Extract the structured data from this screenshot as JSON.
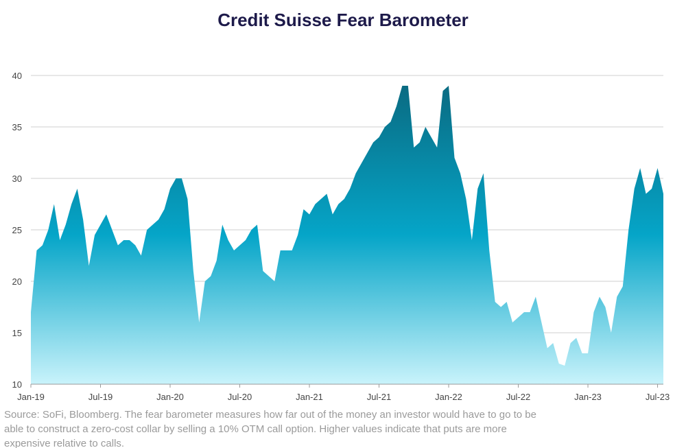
{
  "chart_data": {
    "type": "area",
    "title": "Credit Suisse Fear Barometer",
    "source": "Source: SoFi, Bloomberg. The fear barometer measures how far out of the money an investor would have to go to be able to construct a zero-cost collar by selling a 10% OTM call option. Higher values indicate that puts are more expensive relative to calls.",
    "categories": [
      "Jan-19",
      null,
      null,
      null,
      null,
      null,
      null,
      null,
      null,
      null,
      null,
      null,
      "Jul-19",
      null,
      null,
      null,
      null,
      null,
      null,
      null,
      null,
      null,
      null,
      null,
      "Jan-20",
      null,
      null,
      null,
      null,
      null,
      null,
      null,
      null,
      null,
      null,
      null,
      "Jul-20",
      null,
      null,
      null,
      null,
      null,
      null,
      null,
      null,
      null,
      null,
      null,
      "Jan-21",
      null,
      null,
      null,
      null,
      null,
      null,
      null,
      null,
      null,
      null,
      null,
      "Jul-21",
      null,
      null,
      null,
      null,
      null,
      null,
      null,
      null,
      null,
      null,
      null,
      "Jan-22",
      null,
      null,
      null,
      null,
      null,
      null,
      null,
      null,
      null,
      null,
      null,
      "Jul-22",
      null,
      null,
      null,
      null,
      null,
      null,
      null,
      null,
      null,
      null,
      null,
      "Jan-23",
      null,
      null,
      null,
      null,
      null,
      null,
      null,
      null,
      null,
      null,
      null,
      "Jul-23",
      null
    ],
    "values": [
      17,
      23,
      23.5,
      25,
      27.5,
      24,
      25.5,
      27.5,
      29,
      26,
      21.5,
      24.5,
      25.5,
      26.5,
      25,
      23.5,
      24,
      24,
      23.5,
      22.5,
      25,
      25.5,
      26,
      27,
      29,
      30,
      30,
      28,
      21,
      16,
      20,
      20.5,
      22,
      25.5,
      24,
      23,
      23.5,
      24,
      25,
      25.5,
      21,
      20.5,
      20,
      23,
      23,
      23,
      24.5,
      27,
      26.5,
      27.5,
      28,
      28.5,
      26.5,
      27.5,
      28,
      29,
      30.5,
      31.5,
      32.5,
      33.5,
      34,
      35,
      35.5,
      37,
      39,
      39,
      33,
      33.5,
      35,
      34,
      33,
      38.5,
      39,
      32,
      30.5,
      28,
      24,
      29,
      30.5,
      23,
      18,
      17.5,
      18,
      16,
      16.5,
      17,
      17,
      18.5,
      16,
      13.5,
      14,
      12,
      11.8,
      14,
      14.5,
      13,
      13,
      17,
      18.5,
      17.5,
      15,
      18.5,
      19.5,
      25,
      29,
      31,
      28.5,
      29,
      31,
      28.5
    ],
    "gradient": [
      "#0a6b82",
      "#05a5c8",
      "#c9f3fb"
    ],
    "ylim": [
      10,
      43
    ],
    "yticks": [
      10,
      15,
      20,
      25,
      30,
      35,
      40
    ],
    "grid": true
  }
}
